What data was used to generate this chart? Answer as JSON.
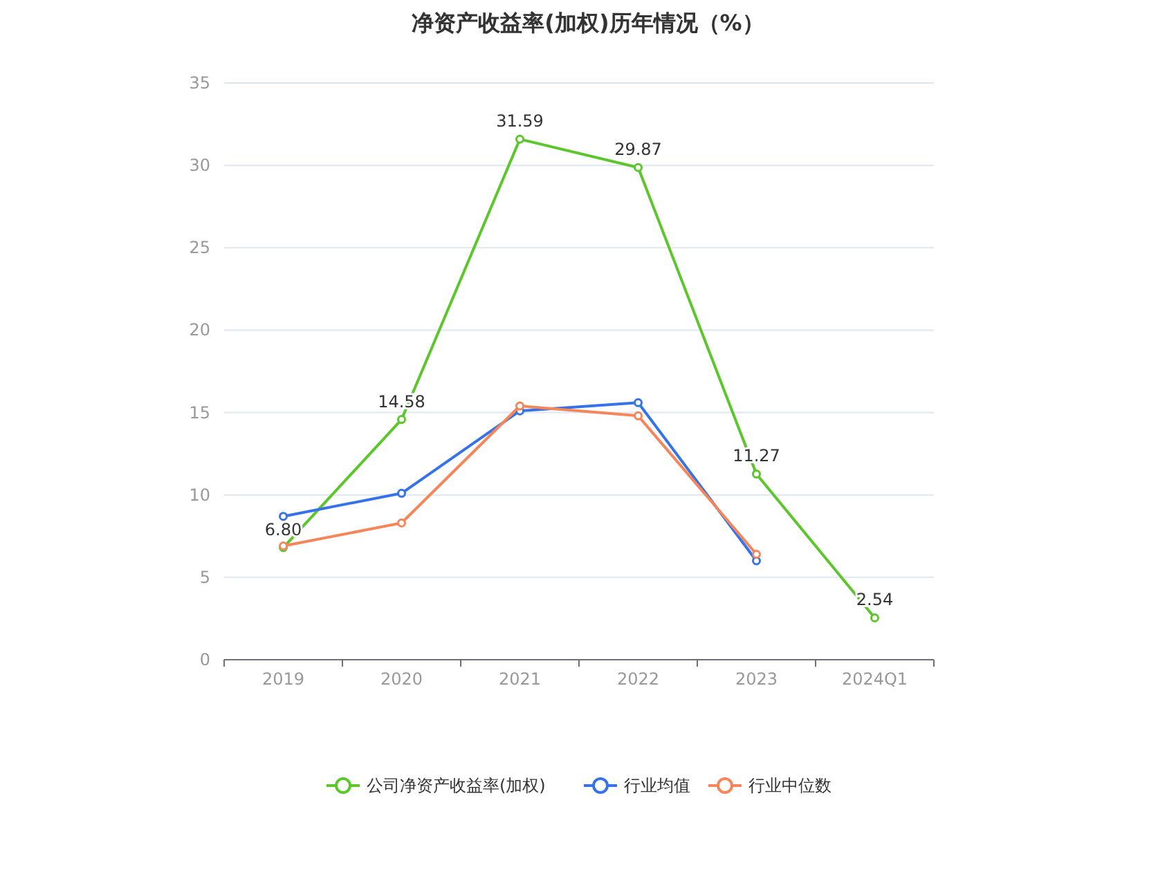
{
  "chart_data": {
    "type": "line",
    "title": "净资产收益率(加权)历年情况（%）",
    "categories": [
      "2019",
      "2020",
      "2021",
      "2022",
      "2023",
      "2024Q1"
    ],
    "series": [
      {
        "name": "公司净资产收益率(加权)",
        "color": "#5cc72c",
        "values": [
          6.8,
          14.58,
          31.59,
          29.87,
          11.27,
          2.54
        ],
        "value_labels": [
          "6.80",
          "14.58",
          "31.59",
          "29.87",
          "11.27",
          "2.54"
        ]
      },
      {
        "name": "行业均值",
        "color": "#3673e8",
        "values": [
          8.7,
          10.1,
          15.1,
          15.6,
          6.0,
          null
        ]
      },
      {
        "name": "行业中位数",
        "color": "#f5865a",
        "values": [
          6.9,
          8.3,
          15.4,
          14.8,
          6.4,
          null
        ]
      }
    ],
    "ylim": [
      0,
      35
    ],
    "yticks": [
      0,
      5,
      10,
      15,
      20,
      25,
      30,
      35
    ],
    "grid": "y",
    "legend": "bottom",
    "marker": "circle",
    "line_style": "solid"
  }
}
